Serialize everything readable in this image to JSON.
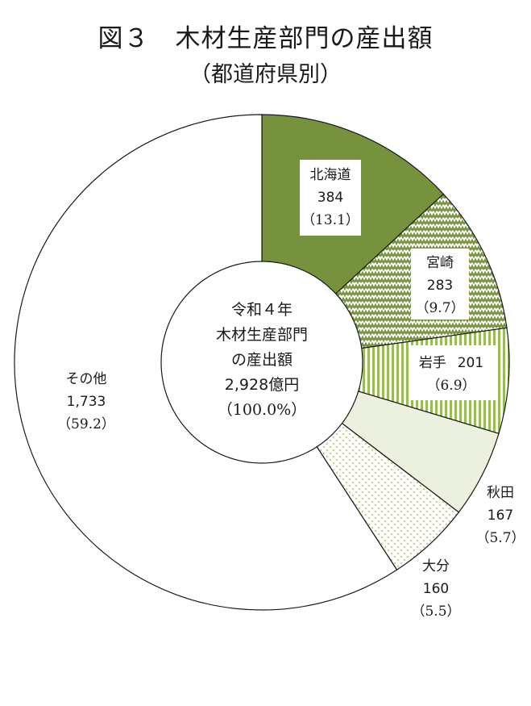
{
  "title": "図３　木材生産部門の産出額",
  "subtitle": "（都道府県別）",
  "chart_data": {
    "type": "pie",
    "title": "図３　木材生産部門の産出額",
    "subtitle": "（都道府県別）",
    "center_label": [
      "令和４年",
      "木材生産部門",
      "の産出額",
      "2,928億円",
      "（100.0%）"
    ],
    "slices": [
      {
        "name": "北海道",
        "value": 384,
        "value_label": "384",
        "percent_label": "（13.1）",
        "color": "#76923c",
        "pattern": "solid"
      },
      {
        "name": "宮崎",
        "value": 283,
        "value_label": "283",
        "percent_label": "（9.7）",
        "color": "#76923c",
        "pattern": "zigzag"
      },
      {
        "name": "岩手",
        "value": 201,
        "value_label": "201",
        "percent_label": "（6.9）",
        "color": "#9bbb59",
        "pattern": "vertical-stripes"
      },
      {
        "name": "秋田",
        "value": 167,
        "value_label": "167",
        "percent_label": "（5.7）",
        "color": "#ebf1de",
        "pattern": "solid"
      },
      {
        "name": "大分",
        "value": 160,
        "value_label": "160",
        "percent_label": "（5.5）",
        "color": "#c3d69b",
        "pattern": "dots"
      },
      {
        "name": "その他",
        "value": 1733,
        "value_label": "1,733",
        "percent_label": "（59.2）",
        "color": "#ffffff",
        "pattern": "solid"
      }
    ]
  }
}
